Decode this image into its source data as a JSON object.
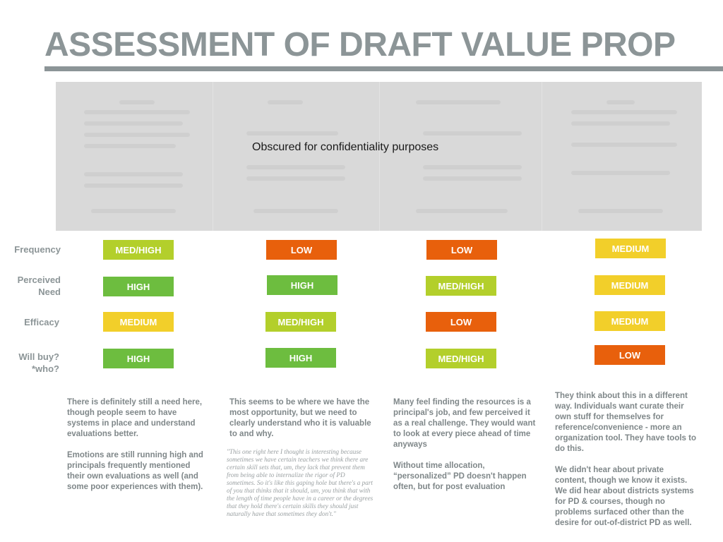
{
  "slide": {
    "title": "ASSESSMENT OF DRAFT VALUE PROP",
    "obscured_text": "Obscured for confidentiality purposes"
  },
  "colors": {
    "high": "#6dbd3f",
    "med_high": "#b3cf2b",
    "medium": "#f2cf2a",
    "low": "#e8600c"
  },
  "row_labels": [
    {
      "key": "frequency",
      "lines": [
        "Frequency"
      ]
    },
    {
      "key": "perceived_need",
      "lines": [
        "Perceived",
        "Need"
      ]
    },
    {
      "key": "efficacy",
      "lines": [
        "Efficacy"
      ]
    },
    {
      "key": "will_buy",
      "lines": [
        "Will buy?",
        "*who?"
      ]
    }
  ],
  "ratings": {
    "col1": {
      "frequency": "MED/HIGH",
      "perceived_need": "HIGH",
      "efficacy": "MEDIUM",
      "will_buy": "HIGH"
    },
    "col2": {
      "frequency": "LOW",
      "perceived_need": "HIGH",
      "efficacy": "MED/HIGH",
      "will_buy": "HIGH"
    },
    "col3": {
      "frequency": "LOW",
      "perceived_need": "MED/HIGH",
      "efficacy": "LOW",
      "will_buy": "MED/HIGH"
    },
    "col4": {
      "frequency": "MEDIUM",
      "perceived_need": "MEDIUM",
      "efficacy": "MEDIUM",
      "will_buy": "LOW"
    }
  },
  "notes": {
    "col1": [
      "There is definitely still a need here, though people seem to have systems in place and understand evaluations better.",
      "Emotions are still running high and principals frequently mentioned their own evaluations as well (and some poor experiences with them)."
    ],
    "col2": [
      "This seems to be where we have the most opportunity, but we need to clearly understand who it is valuable to and why."
    ],
    "col2_quote": "\"This one right here I thought is interesting because sometimes we have certain teachers we think there are certain skill sets that, um, they lack that prevent them from being able to internalize the rigor of PD sometimes. So it's like this gaping hole but there's a part of you that thinks that it should, um, you think that with the length of time people have in a career or the degrees that they hold there's certain skills they should just naturally have that sometimes they don't.\"",
    "col3": [
      "Many feel finding the resources is a principal's job, and few perceived it as a real challenge.  They would want to look at every piece ahead of time anyways",
      "Without time allocation, “personalized” PD doesn't happen often, but for post evaluation"
    ],
    "col4": [
      "They think about this in a different way. Individuals want curate their own stuff for themselves for reference/convenience - more an organization tool. They have tools to do this.",
      "We didn't hear about private content, though we know it exists. We did hear about districts systems for PD & courses, though no problems surfaced other than the desire for out-of-district PD as well."
    ]
  }
}
